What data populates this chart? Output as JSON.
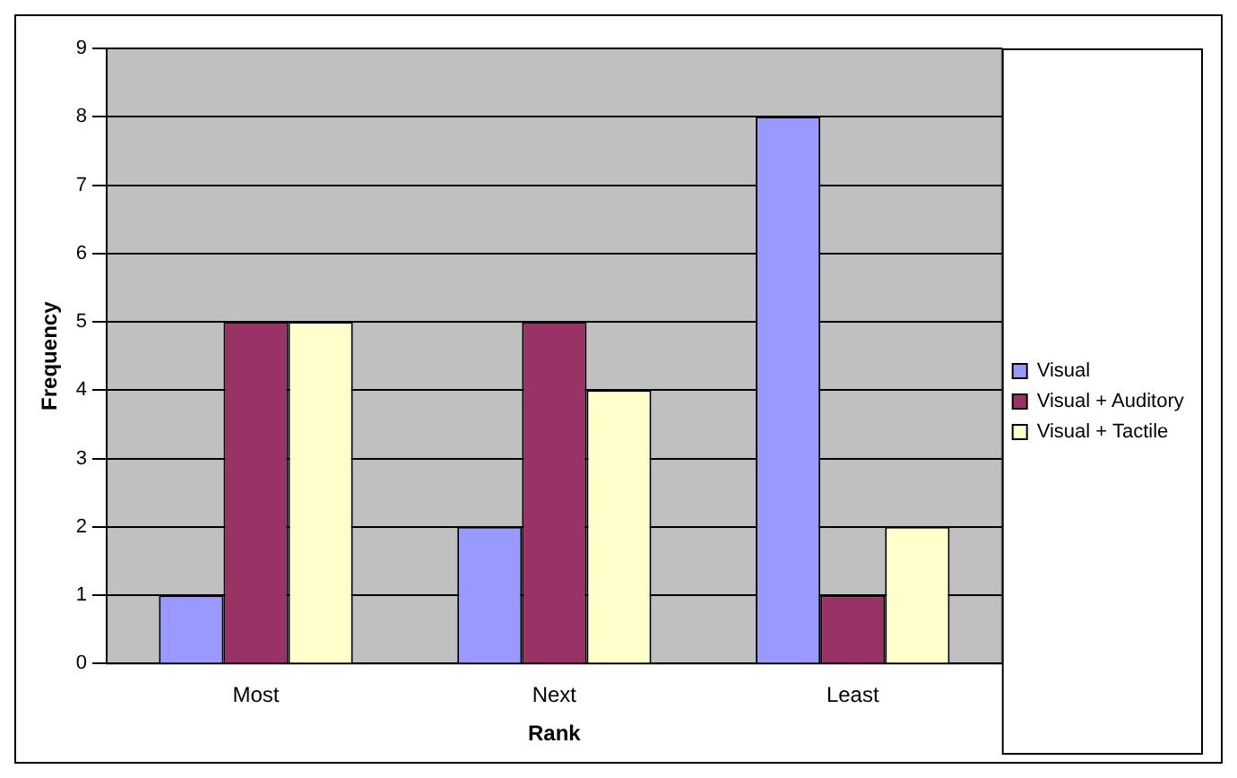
{
  "chart_data": {
    "type": "bar",
    "xlabel": "Rank",
    "ylabel": "Frequency",
    "categories": [
      "Most",
      "Next",
      "Least"
    ],
    "series": [
      {
        "name": "Visual",
        "color": "#9999ff",
        "values": [
          1,
          2,
          8
        ]
      },
      {
        "name": "Visual + Auditory",
        "color": "#993366",
        "values": [
          5,
          5,
          1
        ]
      },
      {
        "name": "Visual + Tactile",
        "color": "#ffffcc",
        "values": [
          5,
          4,
          2
        ]
      }
    ],
    "ylim": [
      0,
      9
    ],
    "yticks": [
      0,
      1,
      2,
      3,
      4,
      5,
      6,
      7,
      8,
      9
    ],
    "grid": "y",
    "legend": "right"
  }
}
